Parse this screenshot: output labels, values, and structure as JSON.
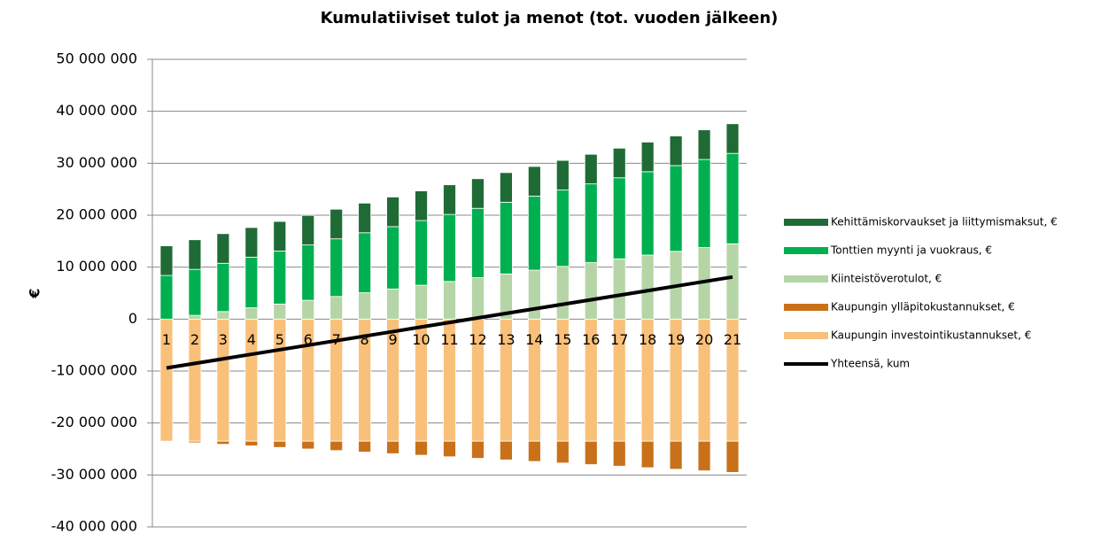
{
  "chart_data": {
    "type": "bar",
    "title": "Kumulatiiviset tulot ja menot (tot. vuoden jälkeen)",
    "y_label": "€",
    "categories": [
      "1",
      "2",
      "3",
      "4",
      "5",
      "6",
      "7",
      "8",
      "9",
      "10",
      "11",
      "12",
      "13",
      "14",
      "15",
      "16",
      "17",
      "18",
      "19",
      "20",
      "21"
    ],
    "stacked": true,
    "series": [
      {
        "name": "Kehittämiskorvaukset ja liittymismaksut, €",
        "color": "#1f6b35",
        "values": [
          5700000,
          5700000,
          5700000,
          5700000,
          5700000,
          5700000,
          5700000,
          5700000,
          5700000,
          5700000,
          5700000,
          5700000,
          5700000,
          5700000,
          5700000,
          5700000,
          5700000,
          5700000,
          5700000,
          5700000,
          5700000
        ]
      },
      {
        "name": "Tonttien myynti ja vuokraus, €",
        "color": "#00b050",
        "values": [
          8400000,
          8850000,
          9300000,
          9750000,
          10200000,
          10650000,
          11100000,
          11550000,
          12000000,
          12450000,
          12900000,
          13350000,
          13800000,
          14250000,
          14700000,
          15150000,
          15600000,
          16050000,
          16500000,
          16950000,
          17400000
        ]
      },
      {
        "name": "Kiinteistöverotulot, €",
        "color": "#b5d5a6",
        "values": [
          0,
          725000,
          1450000,
          2175000,
          2900000,
          3625000,
          4350000,
          5075000,
          5800000,
          6525000,
          7250000,
          7975000,
          8700000,
          9425000,
          10150000,
          10875000,
          11600000,
          12325000,
          13050000,
          13775000,
          14500000
        ]
      },
      {
        "name": "Kaupungin ylläpitokustannukset, €",
        "color": "#c8711a",
        "values": [
          0,
          -300000,
          -600000,
          -900000,
          -1200000,
          -1500000,
          -1800000,
          -2100000,
          -2400000,
          -2700000,
          -3000000,
          -3300000,
          -3600000,
          -3900000,
          -4200000,
          -4500000,
          -4800000,
          -5100000,
          -5400000,
          -5700000,
          -6000000
        ]
      },
      {
        "name": "Kaupungin investointikustannukset, €",
        "color": "#f9c07a",
        "values": [
          -23500000,
          -23500000,
          -23500000,
          -23500000,
          -23500000,
          -23500000,
          -23500000,
          -23500000,
          -23500000,
          -23500000,
          -23500000,
          -23500000,
          -23500000,
          -23500000,
          -23500000,
          -23500000,
          -23500000,
          -23500000,
          -23500000,
          -23500000,
          -23500000
        ]
      },
      {
        "name": "Yhteensä, kum",
        "color": "#000000",
        "type": "line",
        "values": [
          -9400000,
          -8525000,
          -7650000,
          -6775000,
          -5900000,
          -5025000,
          -4150000,
          -3275000,
          -2400000,
          -1525000,
          -650000,
          225000,
          1100000,
          1975000,
          2850000,
          3725000,
          4600000,
          5475000,
          6350000,
          7225000,
          8100000
        ]
      }
    ],
    "ylim": [
      -40000000,
      50000000
    ],
    "yticks": [
      {
        "value": -40000000,
        "label": "-40 000 000"
      },
      {
        "value": -30000000,
        "label": "-30 000 000"
      },
      {
        "value": -20000000,
        "label": "-20 000 000"
      },
      {
        "value": -10000000,
        "label": "-10 000 000"
      },
      0,
      {
        "value": 10000000,
        "label": "10 000 000"
      },
      {
        "value": 20000000,
        "label": "20 000 000"
      },
      {
        "value": 30000000,
        "label": "30 000 000"
      },
      {
        "value": 40000000,
        "label": "40 000 000"
      },
      {
        "value": 50000000,
        "label": "50 000 000"
      }
    ],
    "grid": true,
    "legend": "right"
  }
}
